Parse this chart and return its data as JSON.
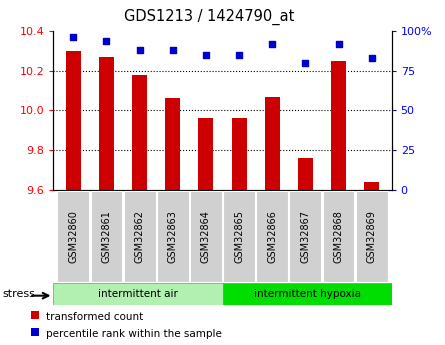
{
  "title": "GDS1213 / 1424790_at",
  "categories": [
    "GSM32860",
    "GSM32861",
    "GSM32862",
    "GSM32863",
    "GSM32864",
    "GSM32865",
    "GSM32866",
    "GSM32867",
    "GSM32868",
    "GSM32869"
  ],
  "bar_values": [
    10.3,
    10.27,
    10.18,
    10.06,
    9.96,
    9.96,
    10.07,
    9.76,
    10.25,
    9.64
  ],
  "percentile_values": [
    96,
    94,
    88,
    88,
    85,
    85,
    92,
    80,
    92,
    83
  ],
  "bar_color": "#cc0000",
  "dot_color": "#0000cc",
  "ylim_left": [
    9.6,
    10.4
  ],
  "ylim_right": [
    0,
    100
  ],
  "yticks_left": [
    9.6,
    9.8,
    10.0,
    10.2,
    10.4
  ],
  "yticks_right": [
    0,
    25,
    50,
    75,
    100
  ],
  "grid_values": [
    9.8,
    10.0,
    10.2
  ],
  "group1_label": "intermittent air",
  "group2_label": "intermittent hypoxia",
  "group1_count": 5,
  "group2_count": 5,
  "stress_label": "stress",
  "legend1": "transformed count",
  "legend2": "percentile rank within the sample",
  "group1_color": "#b2f0b2",
  "group2_color": "#00dd00",
  "tick_bg_color": "#d0d0d0",
  "background_color": "#ffffff",
  "bar_width": 0.45
}
